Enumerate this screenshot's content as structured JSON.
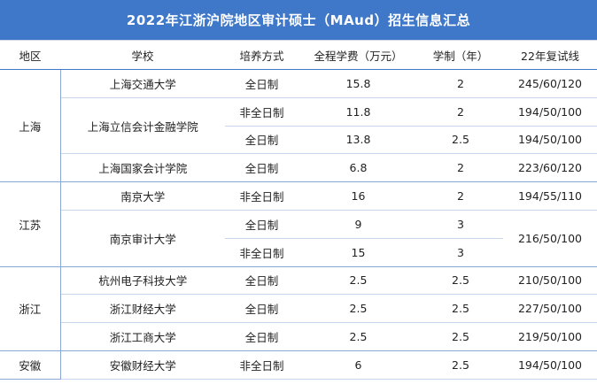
{
  "title": "2022年江浙沪院地区审计硕士（MAud）招生信息汇总",
  "headers": {
    "region": "地区",
    "school": "学校",
    "mode": "培养方式",
    "fee": "全程学费（万元）",
    "years": "学制（年）",
    "score": "22年复试线"
  },
  "regions": {
    "shanghai": "上海",
    "jiangsu": "江苏",
    "zhejiang": "浙江",
    "anhui": "安徽"
  },
  "rows": [
    {
      "school": "上海交通大学",
      "mode": "全日制",
      "fee": "15.8",
      "years": "2",
      "score": "245/60/120"
    },
    {
      "school": "上海立信会计金融学院",
      "mode": "非全日制",
      "fee": "11.8",
      "years": "2",
      "score": "194/50/100"
    },
    {
      "school": "",
      "mode": "全日制",
      "fee": "13.8",
      "years": "2.5",
      "score": "194/50/100"
    },
    {
      "school": "上海国家会计学院",
      "mode": "全日制",
      "fee": "6.8",
      "years": "2",
      "score": "223/60/120"
    },
    {
      "school": "南京大学",
      "mode": "非全日制",
      "fee": "16",
      "years": "2",
      "score": "194/55/110"
    },
    {
      "school": "南京审计大学",
      "mode": "全日制",
      "fee": "9",
      "years": "3",
      "score": "216/50/100"
    },
    {
      "school": "",
      "mode": "非全日制",
      "fee": "15",
      "years": "3",
      "score": ""
    },
    {
      "school": "杭州电子科技大学",
      "mode": "全日制",
      "fee": "2.5",
      "years": "2.5",
      "score": "210/50/100"
    },
    {
      "school": "浙江财经大学",
      "mode": "全日制",
      "fee": "2.5",
      "years": "2.5",
      "score": "227/50/100"
    },
    {
      "school": "浙江工商大学",
      "mode": "全日制",
      "fee": "2.5",
      "years": "2.5",
      "score": "219/50/100"
    },
    {
      "school": "安徽财经大学",
      "mode": "非全日制",
      "fee": "6",
      "years": "2.5",
      "score": "194/50/100"
    }
  ],
  "colors": {
    "header_bg": "#3f78c9",
    "grid": "#c9d7ee"
  }
}
